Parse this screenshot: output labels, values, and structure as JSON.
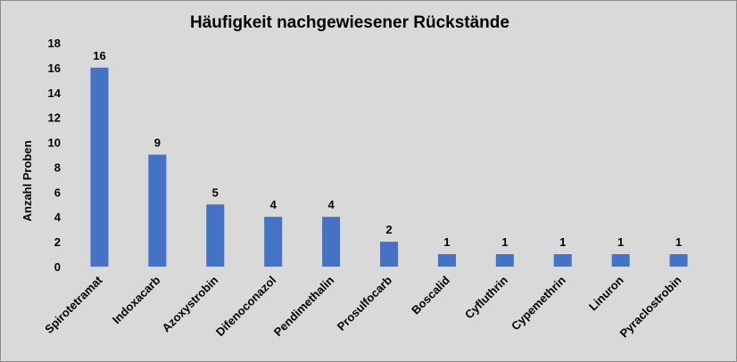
{
  "chart_data": {
    "type": "bar",
    "title": "Häufigkeit nachgewiesener Rückstände",
    "xlabel": "",
    "ylabel": "Anzahl Proben",
    "ylim": [
      0,
      18
    ],
    "yticks": [
      0,
      2,
      4,
      6,
      8,
      10,
      12,
      14,
      16,
      18
    ],
    "grid": false,
    "legend": "none",
    "bar_color": "#4472c4",
    "background_color": "#d9d9d9",
    "categories": [
      "Spirotetramat",
      "Indoxacarb",
      "Azoxystrobin",
      "Difenoconazol",
      "Pendimethalin",
      "Prosulfocarb",
      "Boscalid",
      "Cyfluthrin",
      "Cypemethrin",
      "Linuron",
      "Pyraclostrobin"
    ],
    "values": [
      16,
      9,
      5,
      4,
      4,
      2,
      1,
      1,
      1,
      1,
      1
    ],
    "data_labels": [
      "16",
      "9",
      "5",
      "4",
      "4",
      "2",
      "1",
      "1",
      "1",
      "1",
      "1"
    ]
  }
}
